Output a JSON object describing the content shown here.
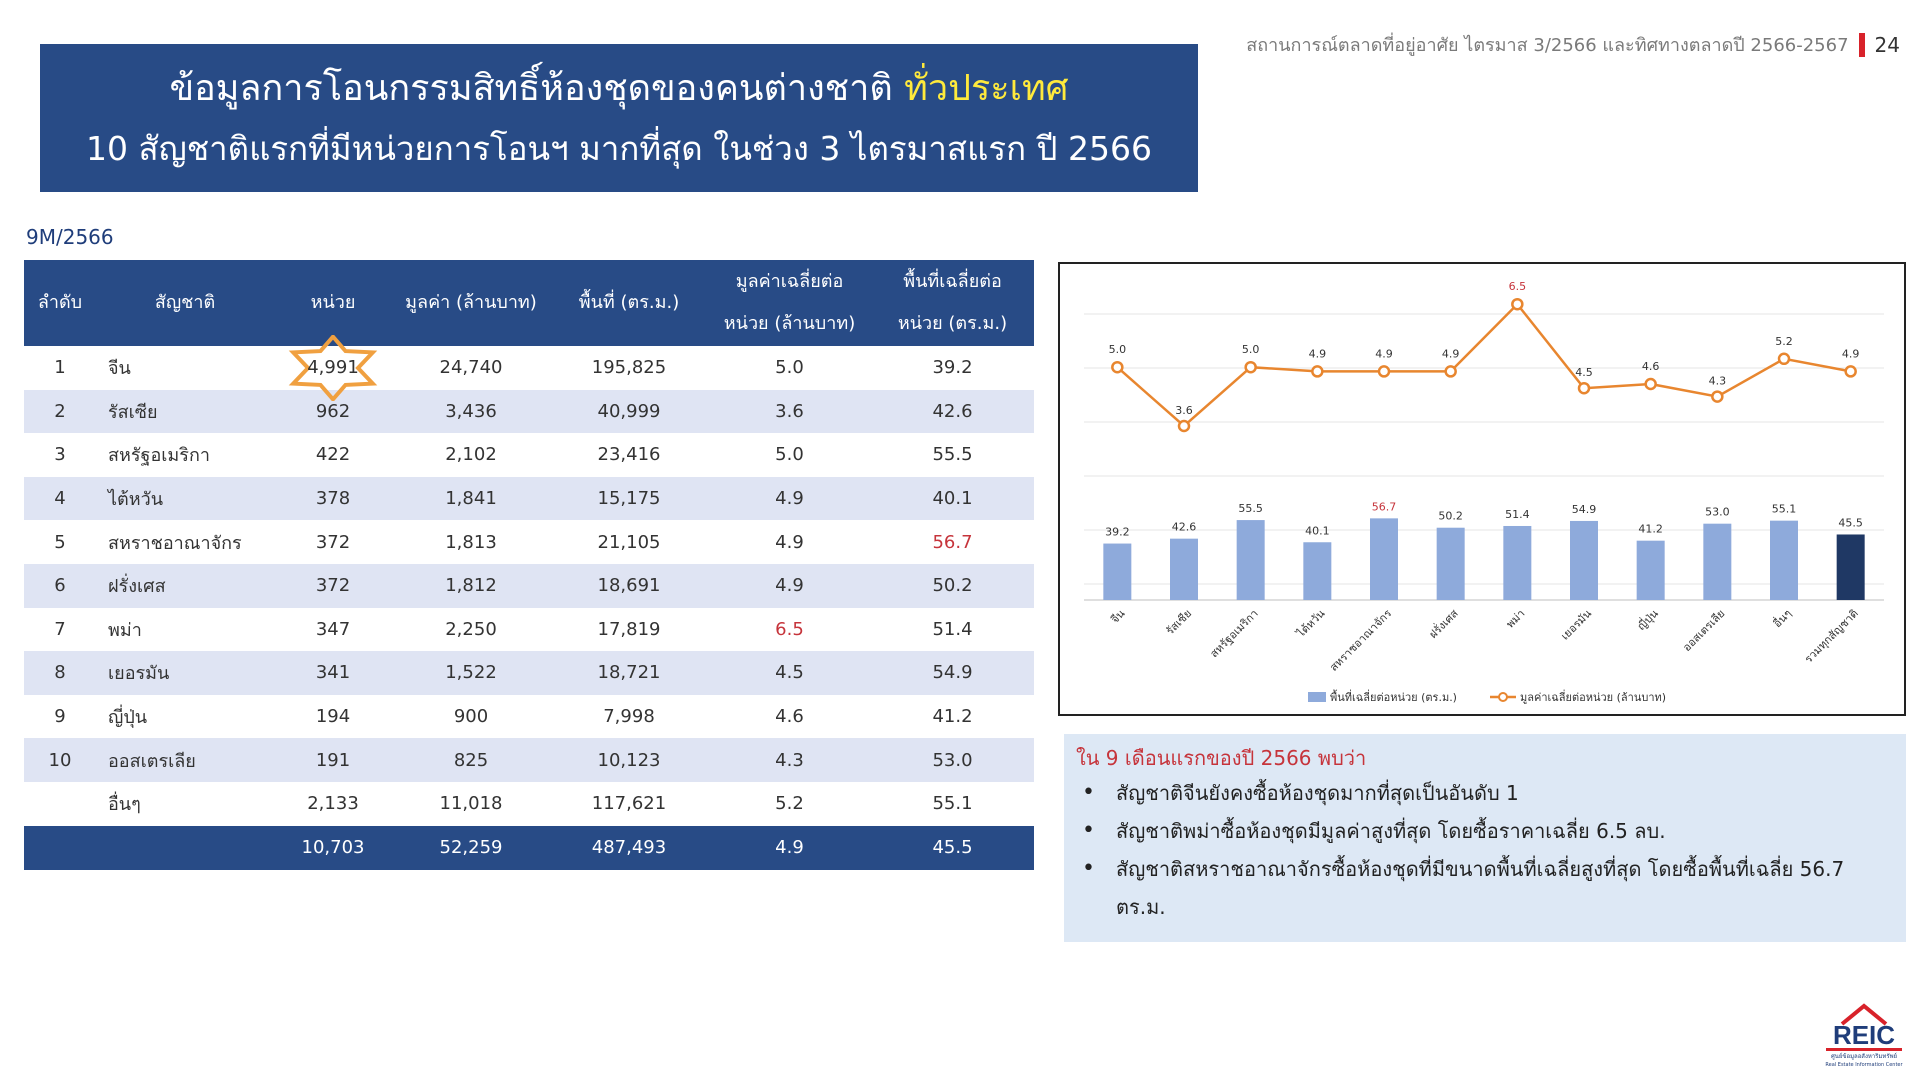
{
  "header": {
    "title_line1_main": "ข้อมูลการโอนกรรมสิทธิ์ห้องชุดของคนต่างชาติ",
    "title_line1_highlight": "ทั่วประเทศ",
    "title_line2": "10 สัญชาติแรกที่มีหน่วยการโอนฯ มากที่สุด ในช่วง 3 ไตรมาสแรก ปี 2566",
    "report_title": "สถานการณ์ตลาดที่อยู่อาศัย ไตรมาส 3/2566 และทิศทางตลาดปี 2566-2567",
    "page_number": "24",
    "colors": {
      "banner": "#284b86",
      "highlight": "#ffea3c",
      "accent_red": "#c6343b"
    }
  },
  "period_label": "9M/2566",
  "table": {
    "columns": {
      "rank": "ลำดับ",
      "nationality": "สัญชาติ",
      "units": "หน่วย",
      "value": "มูลค่า (ล้านบาท)",
      "area": "พื้นที่ (ตร.ม.)",
      "avg_value_l1": "มูลค่าเฉลี่ยต่อ",
      "avg_value_l2": "หน่วย (ล้านบาท)",
      "avg_area_l1": "พื้นที่เฉลี่ยต่อ",
      "avg_area_l2": "หน่วย (ตร.ม.)"
    },
    "rows": [
      {
        "rank": "1",
        "nationality": "จีน",
        "units": "4,991",
        "value": "24,740",
        "area": "195,825",
        "avg_value": "5.0",
        "avg_area": "39.2"
      },
      {
        "rank": "2",
        "nationality": "รัสเซีย",
        "units": "962",
        "value": "3,436",
        "area": "40,999",
        "avg_value": "3.6",
        "avg_area": "42.6"
      },
      {
        "rank": "3",
        "nationality": "สหรัฐอเมริกา",
        "units": "422",
        "value": "2,102",
        "area": "23,416",
        "avg_value": "5.0",
        "avg_area": "55.5"
      },
      {
        "rank": "4",
        "nationality": "ไต้หวัน",
        "units": "378",
        "value": "1,841",
        "area": "15,175",
        "avg_value": "4.9",
        "avg_area": "40.1"
      },
      {
        "rank": "5",
        "nationality": "สหราชอาณาจักร",
        "units": "372",
        "value": "1,813",
        "area": "21,105",
        "avg_value": "4.9",
        "avg_area": "56.7"
      },
      {
        "rank": "6",
        "nationality": "ฝรั่งเศส",
        "units": "372",
        "value": "1,812",
        "area": "18,691",
        "avg_value": "4.9",
        "avg_area": "50.2"
      },
      {
        "rank": "7",
        "nationality": "พม่า",
        "units": "347",
        "value": "2,250",
        "area": "17,819",
        "avg_value": "6.5",
        "avg_area": "51.4"
      },
      {
        "rank": "8",
        "nationality": "เยอรมัน",
        "units": "341",
        "value": "1,522",
        "area": "18,721",
        "avg_value": "4.5",
        "avg_area": "54.9"
      },
      {
        "rank": "9",
        "nationality": "ญี่ปุ่น",
        "units": "194",
        "value": "900",
        "area": "7,998",
        "avg_value": "4.6",
        "avg_area": "41.2"
      },
      {
        "rank": "10",
        "nationality": "ออสเตรเลีย",
        "units": "191",
        "value": "825",
        "area": "10,123",
        "avg_value": "4.3",
        "avg_area": "53.0"
      },
      {
        "rank": "",
        "nationality": "อื่นๆ",
        "units": "2,133",
        "value": "11,018",
        "area": "117,621",
        "avg_value": "5.2",
        "avg_area": "55.1"
      }
    ],
    "total": {
      "units": "10,703",
      "value": "52,259",
      "area": "487,493",
      "avg_value": "4.9",
      "avg_area": "45.5"
    }
  },
  "chart_data": {
    "type": "bar",
    "categories": [
      "จีน",
      "รัสเซีย",
      "สหรัฐอเมริกา",
      "ไต้หวัน",
      "สหราชอาณาจักร",
      "ฝรั่งเศส",
      "พม่า",
      "เยอรมัน",
      "ญี่ปุ่น",
      "ออสเตรเลีย",
      "อื่นๆ",
      "รวมทุกสัญชาติ"
    ],
    "series": [
      {
        "name": "พื้นที่เฉลี่ยต่อหน่วย (ตร.ม.)",
        "type": "bar",
        "values": [
          39.2,
          42.6,
          55.5,
          40.1,
          56.7,
          50.2,
          51.4,
          54.9,
          41.2,
          53.0,
          55.1,
          45.5
        ],
        "color": "#8eaadb",
        "highlight_color": "#1f3864"
      },
      {
        "name": "มูลค่าเฉลี่ยต่อหน่วย (ล้านบาท)",
        "type": "line",
        "values": [
          5.0,
          3.6,
          5.0,
          4.9,
          4.9,
          4.9,
          6.5,
          4.5,
          4.6,
          4.3,
          5.2,
          4.9
        ],
        "color": "#e8862f"
      }
    ],
    "highlighted_max_labels": {
      "bar_index": 4,
      "line_index": 6,
      "color": "#c6343b"
    },
    "legend_position": "bottom",
    "grid": true
  },
  "notes": {
    "heading": "ใน 9 เดือนแรกของปี 2566 พบว่า",
    "items": [
      "สัญชาติจีนยังคงซื้อห้องชุดมากที่สุดเป็นอันดับ 1",
      "สัญชาติพม่าซื้อห้องชุดมีมูลค่าสูงที่สุด โดยซื้อราคาเฉลี่ย 6.5 ลบ.",
      "สัญชาติสหราชอาณาจักรซื้อห้องชุดที่มีขนาดพื้นที่เฉลี่ยสูงที่สุด โดยซื้อพื้นที่เฉลี่ย 56.7 ตร.ม."
    ]
  },
  "logo": {
    "text": "REIC",
    "line1": "ศูนย์ข้อมูลอสังหาริมทรัพย์",
    "line2": "Real Estate Information Center"
  }
}
